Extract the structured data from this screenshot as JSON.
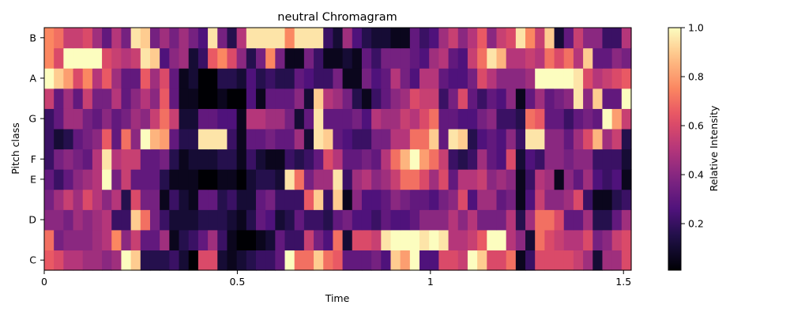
{
  "chart_data": {
    "type": "heatmap",
    "title": "neutral Chromagram",
    "xlabel": "Time",
    "ylabel": "Pitch class",
    "xlim": [
      0,
      1.52
    ],
    "xticks": [
      0,
      0.5,
      1,
      1.5
    ],
    "xtick_labels": [
      "0",
      "0.5",
      "1",
      "1.5"
    ],
    "y_rows_bottom_to_top": 12,
    "yticks": [
      {
        "row": 0,
        "label": "C"
      },
      {
        "row": 2,
        "label": "D"
      },
      {
        "row": 4,
        "label": "E"
      },
      {
        "row": 5,
        "label": "F"
      },
      {
        "row": 7,
        "label": "G"
      },
      {
        "row": 9,
        "label": "A"
      },
      {
        "row": 11,
        "label": "B"
      }
    ],
    "n_frames": 61,
    "colormap": "magma",
    "colorbar": {
      "label": "Relative Intensity",
      "range": [
        0.01,
        1.0
      ],
      "ticks": [
        0.2,
        0.4,
        0.6,
        0.8,
        1.0
      ],
      "tick_labels": [
        "0.2",
        "0.4",
        "0.6",
        "0.8",
        "1.0"
      ]
    },
    "values_rows_bottom_to_top": [
      [
        0.65,
        0.6,
        0.5,
        0.5,
        0.45,
        0.45,
        0.4,
        0.45,
        1.0,
        0.9,
        0.15,
        0.15,
        0.15,
        0.2,
        0.1,
        0.0,
        0.6,
        0.6,
        0.1,
        0.05,
        0.1,
        0.15,
        0.2,
        0.2,
        0.3,
        1.0,
        0.7,
        0.7,
        0.9,
        0.7,
        0.65,
        0.3,
        0.3,
        0.3,
        0.35,
        0.25,
        0.9,
        0.8,
        1.0,
        0.25,
        0.25,
        0.6,
        0.6,
        0.55,
        1.0,
        0.9,
        0.6,
        0.6,
        0.7,
        0.05,
        0.2,
        0.6,
        0.6,
        0.6,
        0.6,
        0.55,
        0.45,
        0.1,
        0.45,
        0.45,
        0.6
      ],
      [
        0.7,
        0.35,
        0.4,
        0.4,
        0.4,
        0.45,
        0.5,
        0.75,
        0.4,
        0.55,
        0.3,
        0.3,
        0.45,
        0.05,
        0.15,
        0.2,
        0.3,
        0.45,
        0.2,
        0.05,
        0.0,
        0.0,
        0.05,
        0.1,
        0.3,
        0.2,
        0.2,
        0.55,
        0.35,
        0.25,
        0.7,
        0.1,
        0.6,
        0.6,
        0.55,
        0.95,
        1.0,
        1.0,
        1.0,
        0.95,
        1.0,
        0.95,
        0.5,
        0.5,
        0.55,
        0.65,
        1.0,
        1.0,
        0.5,
        0.4,
        0.1,
        0.7,
        0.6,
        0.55,
        0.5,
        0.5,
        0.6,
        0.35,
        0.4,
        0.55,
        0.6
      ],
      [
        0.4,
        0.4,
        0.35,
        0.45,
        0.4,
        0.45,
        0.5,
        0.2,
        0.2,
        0.9,
        0.7,
        0.35,
        0.2,
        0.1,
        0.1,
        0.1,
        0.15,
        0.15,
        0.15,
        0.1,
        0.05,
        0.15,
        0.3,
        0.25,
        0.1,
        0.15,
        0.3,
        0.2,
        0.2,
        0.15,
        0.3,
        0.35,
        0.25,
        0.25,
        0.2,
        0.3,
        0.25,
        0.25,
        0.3,
        0.4,
        0.4,
        0.4,
        0.5,
        0.4,
        0.5,
        0.35,
        0.35,
        0.35,
        0.5,
        0.15,
        0.45,
        0.7,
        0.7,
        0.6,
        0.3,
        0.3,
        0.45,
        0.15,
        0.15,
        0.3,
        0.45
      ],
      [
        0.35,
        0.45,
        0.55,
        0.45,
        0.6,
        0.5,
        0.4,
        0.5,
        0.15,
        0.6,
        0.35,
        0.35,
        0.05,
        0.2,
        0.1,
        0.05,
        0.3,
        0.3,
        0.15,
        0.2,
        0.1,
        0.1,
        0.3,
        0.35,
        0.2,
        0.2,
        0.2,
        0.65,
        0.9,
        0.2,
        0.9,
        0.05,
        0.4,
        0.25,
        0.25,
        0.3,
        0.4,
        0.35,
        0.3,
        0.3,
        0.25,
        0.35,
        0.4,
        0.6,
        0.25,
        0.45,
        0.45,
        0.3,
        0.35,
        0.05,
        0.25,
        0.55,
        0.4,
        0.4,
        0.45,
        0.6,
        0.2,
        0.05,
        0.05,
        0.15,
        0.2
      ],
      [
        0.3,
        0.2,
        0.3,
        0.4,
        0.45,
        0.5,
        1.0,
        0.35,
        0.55,
        0.3,
        0.3,
        0.3,
        0.15,
        0.05,
        0.05,
        0.05,
        0.0,
        0.0,
        0.05,
        0.05,
        0.0,
        0.1,
        0.15,
        0.15,
        0.1,
        0.95,
        0.7,
        0.35,
        0.45,
        0.45,
        0.95,
        0.2,
        0.45,
        0.5,
        0.4,
        0.45,
        0.55,
        0.7,
        0.7,
        0.6,
        0.45,
        0.6,
        0.3,
        0.5,
        0.5,
        0.55,
        0.4,
        0.45,
        0.4,
        0.05,
        0.2,
        0.5,
        0.45,
        0.05,
        0.4,
        0.3,
        0.45,
        0.25,
        0.2,
        0.25,
        0.05
      ],
      [
        0.2,
        0.35,
        0.4,
        0.35,
        0.3,
        0.5,
        0.95,
        0.5,
        0.55,
        0.55,
        0.3,
        0.3,
        0.35,
        0.15,
        0.05,
        0.1,
        0.1,
        0.1,
        0.15,
        0.15,
        0.05,
        0.2,
        0.1,
        0.05,
        0.05,
        0.2,
        0.15,
        0.2,
        0.3,
        0.6,
        0.5,
        0.3,
        0.3,
        0.35,
        0.3,
        0.5,
        0.7,
        0.85,
        1.0,
        0.8,
        0.7,
        0.55,
        0.2,
        0.15,
        0.2,
        0.45,
        0.3,
        0.25,
        0.6,
        0.1,
        0.25,
        0.2,
        0.4,
        0.4,
        0.35,
        0.4,
        0.4,
        0.2,
        0.2,
        0.2,
        0.1
      ],
      [
        0.2,
        0.1,
        0.15,
        0.3,
        0.35,
        0.4,
        0.65,
        0.3,
        0.7,
        0.4,
        1.0,
        0.85,
        0.8,
        0.3,
        0.15,
        0.15,
        0.95,
        0.95,
        0.95,
        0.2,
        0.05,
        0.3,
        0.3,
        0.35,
        0.3,
        0.3,
        0.45,
        0.1,
        0.95,
        0.9,
        0.3,
        0.25,
        0.2,
        0.2,
        0.35,
        0.35,
        0.5,
        0.5,
        0.7,
        0.7,
        0.9,
        0.3,
        0.95,
        0.9,
        0.15,
        0.25,
        0.3,
        0.25,
        0.4,
        0.2,
        0.95,
        0.95,
        0.4,
        0.4,
        0.3,
        0.45,
        0.6,
        0.85,
        0.45,
        0.55,
        0.15
      ],
      [
        0.2,
        0.3,
        0.45,
        0.45,
        0.35,
        0.3,
        0.4,
        0.3,
        0.35,
        0.45,
        0.4,
        0.55,
        0.7,
        0.55,
        0.1,
        0.1,
        0.3,
        0.3,
        0.25,
        0.25,
        0.05,
        0.5,
        0.5,
        0.45,
        0.45,
        0.35,
        0.1,
        0.3,
        0.95,
        0.3,
        0.3,
        0.3,
        0.35,
        0.25,
        0.5,
        0.45,
        0.45,
        0.55,
        0.5,
        0.6,
        0.7,
        0.3,
        0.3,
        0.25,
        0.25,
        0.35,
        0.4,
        0.2,
        0.2,
        0.15,
        0.7,
        0.65,
        0.3,
        0.3,
        0.2,
        0.3,
        0.35,
        0.3,
        1.0,
        0.8,
        0.55
      ],
      [
        0.55,
        0.3,
        0.45,
        0.3,
        0.55,
        0.35,
        0.35,
        0.5,
        0.3,
        0.4,
        0.5,
        0.4,
        0.65,
        0.3,
        0.05,
        0.05,
        0.0,
        0.0,
        0.05,
        0.0,
        0.0,
        0.25,
        0.05,
        0.3,
        0.3,
        0.3,
        0.4,
        0.1,
        0.9,
        0.5,
        0.45,
        0.35,
        0.15,
        0.05,
        0.2,
        0.3,
        0.4,
        0.45,
        0.6,
        0.55,
        0.55,
        0.2,
        0.35,
        0.6,
        0.3,
        0.2,
        0.3,
        0.25,
        0.4,
        0.05,
        0.3,
        0.45,
        0.3,
        0.35,
        0.4,
        0.95,
        0.4,
        0.9,
        0.3,
        0.3,
        1.0
      ],
      [
        1.0,
        0.9,
        0.8,
        0.6,
        0.75,
        0.5,
        0.65,
        0.45,
        0.3,
        0.3,
        0.65,
        0.45,
        0.6,
        0.3,
        0.05,
        0.1,
        0.0,
        0.0,
        0.15,
        0.15,
        0.1,
        0.25,
        0.15,
        0.2,
        0.15,
        0.15,
        0.3,
        0.25,
        0.2,
        0.2,
        0.35,
        0.05,
        0.05,
        0.35,
        0.25,
        0.3,
        0.5,
        0.35,
        0.25,
        0.5,
        0.5,
        0.3,
        0.25,
        0.25,
        0.35,
        0.6,
        0.5,
        0.4,
        0.4,
        0.4,
        0.45,
        1.0,
        1.0,
        1.0,
        1.0,
        0.95,
        0.6,
        0.5,
        0.55,
        0.6,
        0.65
      ],
      [
        0.75,
        0.6,
        1.0,
        1.0,
        1.0,
        1.0,
        0.6,
        0.55,
        0.5,
        0.55,
        0.95,
        0.9,
        0.25,
        0.4,
        0.45,
        0.1,
        0.2,
        0.65,
        0.75,
        0.6,
        0.4,
        0.15,
        0.35,
        0.75,
        0.35,
        0.05,
        0.05,
        0.35,
        0.2,
        0.05,
        0.05,
        0.1,
        0.05,
        0.3,
        0.2,
        0.35,
        0.35,
        0.35,
        0.3,
        0.25,
        0.45,
        0.5,
        0.3,
        0.25,
        0.55,
        0.7,
        0.95,
        0.85,
        0.5,
        0.5,
        0.55,
        0.5,
        0.7,
        0.6,
        0.7,
        0.5,
        0.9,
        0.3,
        0.3,
        0.4,
        0.35
      ],
      [
        0.75,
        0.7,
        0.55,
        0.55,
        0.6,
        0.45,
        0.3,
        0.5,
        0.35,
        0.95,
        0.9,
        0.35,
        0.45,
        0.35,
        0.45,
        0.35,
        0.25,
        0.95,
        0.35,
        0.15,
        0.5,
        0.95,
        0.95,
        0.95,
        0.95,
        0.75,
        0.95,
        0.95,
        0.95,
        0.2,
        0.1,
        0.45,
        0.25,
        0.15,
        0.1,
        0.1,
        0.05,
        0.05,
        0.3,
        0.2,
        0.25,
        0.45,
        0.55,
        0.4,
        0.5,
        0.65,
        0.4,
        0.55,
        0.6,
        0.95,
        0.75,
        0.55,
        0.9,
        0.1,
        0.3,
        0.55,
        0.4,
        0.4,
        0.2,
        0.2,
        0.5
      ]
    ]
  }
}
